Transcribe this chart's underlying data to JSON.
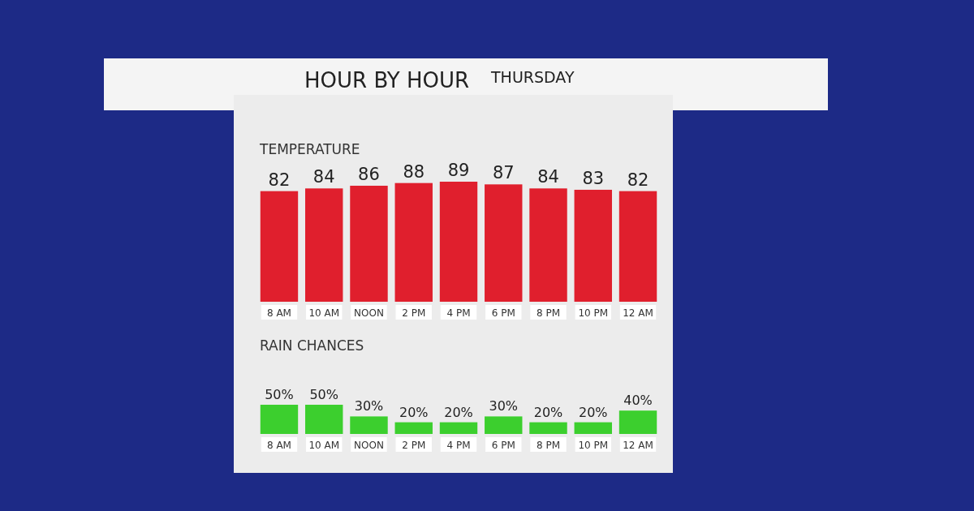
{
  "chart_data": [
    {
      "type": "bar",
      "title": "HOUR BY HOUR",
      "subtitle": "THURSDAY",
      "ylabel": "TEMPERATURE",
      "categories": [
        "8 AM",
        "10 AM",
        "NOON",
        "2 PM",
        "4 PM",
        "6 PM",
        "8 PM",
        "10 PM",
        "12 AM"
      ],
      "values": [
        82,
        84,
        86,
        88,
        89,
        87,
        84,
        83,
        82
      ],
      "color": "#e01f2d",
      "tick_labels": "x",
      "data_labels": true
    },
    {
      "type": "bar",
      "ylabel": "RAIN CHANCES",
      "categories": [
        "8 AM",
        "10 AM",
        "NOON",
        "2 PM",
        "4 PM",
        "6 PM",
        "8 PM",
        "10 PM",
        "12 AM"
      ],
      "values": [
        50,
        50,
        30,
        20,
        20,
        30,
        20,
        20,
        40
      ],
      "value_labels": [
        "50%",
        "50%",
        "30%",
        "20%",
        "20%",
        "30%",
        "20%",
        "20%",
        "40%"
      ],
      "color": "#3ccf2e",
      "tick_labels": "x"
    }
  ]
}
